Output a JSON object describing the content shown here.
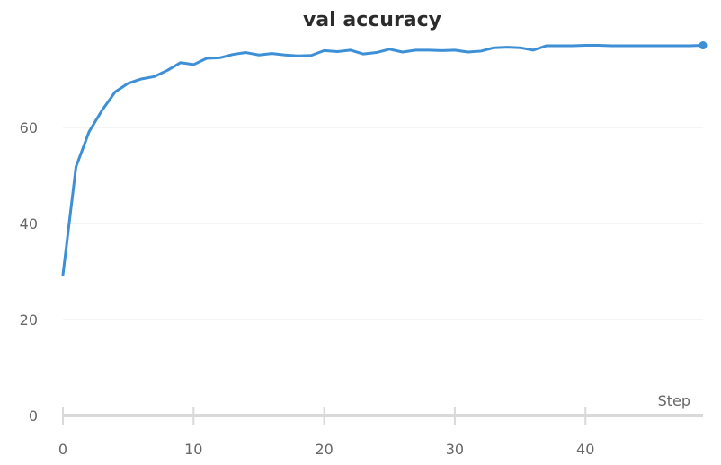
{
  "chart_data": {
    "type": "line",
    "title": "val accuracy",
    "xlabel": "Step",
    "ylabel": "",
    "xlim": [
      0,
      49
    ],
    "ylim": [
      0,
      80
    ],
    "xticks": [
      0,
      10,
      20,
      30,
      40
    ],
    "yticks": [
      0,
      20,
      40,
      60
    ],
    "grid": "horizontal",
    "colors": {
      "line": "#3d8fd6",
      "grid": "#e8e8e8",
      "axis": "#d9d9d9",
      "title": "#2b2b2b",
      "text": "#666666"
    },
    "series": [
      {
        "values": [
          [
            0,
            29.3
          ],
          [
            1,
            51.8
          ],
          [
            2,
            59.1
          ],
          [
            3,
            63.6
          ],
          [
            4,
            67.4
          ],
          [
            5,
            69.2
          ],
          [
            6,
            70.1
          ],
          [
            7,
            70.6
          ],
          [
            8,
            71.9
          ],
          [
            9,
            73.5
          ],
          [
            10,
            73.1
          ],
          [
            11,
            74.4
          ],
          [
            12,
            74.5
          ],
          [
            13,
            75.2
          ],
          [
            14,
            75.6
          ],
          [
            15,
            75.1
          ],
          [
            16,
            75.4
          ],
          [
            17,
            75.1
          ],
          [
            18,
            74.9
          ],
          [
            19,
            75.0
          ],
          [
            20,
            76.0
          ],
          [
            21,
            75.8
          ],
          [
            22,
            76.1
          ],
          [
            23,
            75.3
          ],
          [
            24,
            75.6
          ],
          [
            25,
            76.3
          ],
          [
            26,
            75.7
          ],
          [
            27,
            76.1
          ],
          [
            28,
            76.1
          ],
          [
            29,
            76.0
          ],
          [
            30,
            76.1
          ],
          [
            31,
            75.7
          ],
          [
            32,
            75.9
          ],
          [
            33,
            76.6
          ],
          [
            34,
            76.7
          ],
          [
            35,
            76.6
          ],
          [
            36,
            76.1
          ],
          [
            37,
            77.0
          ],
          [
            38,
            77.0
          ],
          [
            39,
            77.0
          ],
          [
            40,
            77.1
          ],
          [
            41,
            77.1
          ],
          [
            42,
            77.0
          ],
          [
            43,
            77.0
          ],
          [
            44,
            77.0
          ],
          [
            45,
            77.0
          ],
          [
            46,
            77.0
          ],
          [
            47,
            77.0
          ],
          [
            48,
            77.0
          ],
          [
            49,
            77.1
          ]
        ]
      }
    ]
  }
}
